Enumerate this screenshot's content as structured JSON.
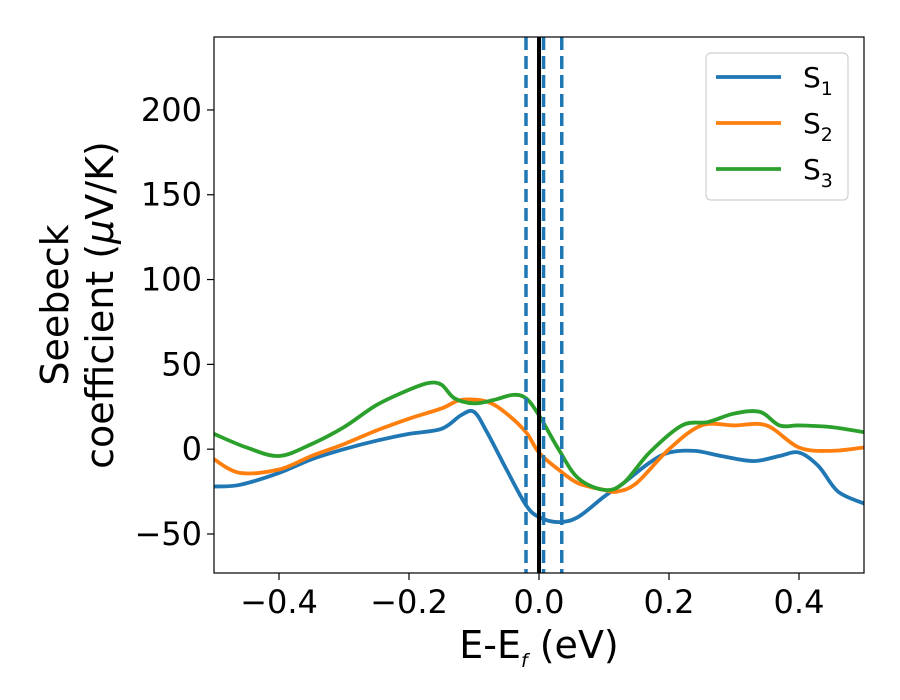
{
  "chart_data": {
    "type": "line",
    "title": "",
    "xlabel": "E-E",
    "xlabel_sub": "f",
    "xlabel_unit": " (eV)",
    "ylabel_line1": "Seebeck",
    "ylabel_line2": "coefficient  (",
    "ylabel_mu": "μ",
    "ylabel_unit": "V/K)",
    "xlim": [
      -0.5,
      0.5
    ],
    "ylim": [
      -73,
      243
    ],
    "xticks": [
      -0.4,
      -0.2,
      0.0,
      0.2,
      0.4
    ],
    "xtick_labels": [
      "−0.4",
      "−0.2",
      "0.0",
      "0.2",
      "0.4"
    ],
    "yticks": [
      -50,
      0,
      50,
      100,
      150,
      200
    ],
    "ytick_labels": [
      "−50",
      "0",
      "50",
      "100",
      "150",
      "200"
    ],
    "grid": false,
    "legend_position": "top-right",
    "series": [
      {
        "name": "S",
        "sub": "1",
        "color": "#1f77b4",
        "x": [
          -0.5,
          -0.46,
          -0.4,
          -0.35,
          -0.3,
          -0.25,
          -0.2,
          -0.15,
          -0.12,
          -0.1,
          -0.08,
          -0.05,
          -0.02,
          0.0,
          0.03,
          0.06,
          0.1,
          0.13,
          0.17,
          0.2,
          0.24,
          0.28,
          0.33,
          0.37,
          0.4,
          0.43,
          0.46,
          0.5
        ],
        "y": [
          -22,
          -21,
          -14,
          -6,
          0,
          5,
          9,
          12,
          20,
          22,
          10,
          -12,
          -33,
          -40,
          -43,
          -40,
          -28,
          -20,
          -8,
          -2,
          -1,
          -4,
          -7,
          -4,
          -2,
          -10,
          -25,
          -32
        ]
      },
      {
        "name": "S",
        "sub": "2",
        "color": "#ff7f0e",
        "x": [
          -0.5,
          -0.46,
          -0.4,
          -0.35,
          -0.3,
          -0.25,
          -0.2,
          -0.15,
          -0.12,
          -0.08,
          -0.05,
          -0.02,
          0.0,
          0.03,
          0.06,
          0.1,
          0.12,
          0.15,
          0.2,
          0.25,
          0.3,
          0.35,
          0.4,
          0.45,
          0.5
        ],
        "y": [
          -6,
          -14,
          -12,
          -4,
          3,
          11,
          18,
          24,
          29,
          28,
          21,
          10,
          -2,
          -12,
          -20,
          -24,
          -25,
          -20,
          0,
          14,
          14,
          14,
          1,
          -1,
          1
        ]
      },
      {
        "name": "S",
        "sub": "3",
        "color": "#2ca02c",
        "x": [
          -0.5,
          -0.45,
          -0.4,
          -0.35,
          -0.3,
          -0.25,
          -0.2,
          -0.17,
          -0.15,
          -0.13,
          -0.1,
          -0.07,
          -0.04,
          -0.02,
          0.0,
          0.03,
          0.06,
          0.1,
          0.13,
          0.17,
          0.22,
          0.26,
          0.3,
          0.34,
          0.37,
          0.4,
          0.45,
          0.5
        ],
        "y": [
          9,
          1,
          -4,
          3,
          13,
          26,
          35,
          39,
          38,
          30,
          27,
          29,
          32,
          30,
          20,
          0,
          -17,
          -24,
          -20,
          -2,
          14,
          16,
          21,
          22,
          14,
          14,
          13,
          10
        ]
      }
    ],
    "vlines": [
      {
        "x": -0.02,
        "style": "dashed",
        "color": "#1f77b4"
      },
      {
        "x": 0.007,
        "style": "dashed",
        "color": "#1f77b4"
      },
      {
        "x": 0.035,
        "style": "dashed",
        "color": "#1f77b4"
      },
      {
        "x": 0.0,
        "style": "solid",
        "color": "#000000"
      }
    ]
  }
}
